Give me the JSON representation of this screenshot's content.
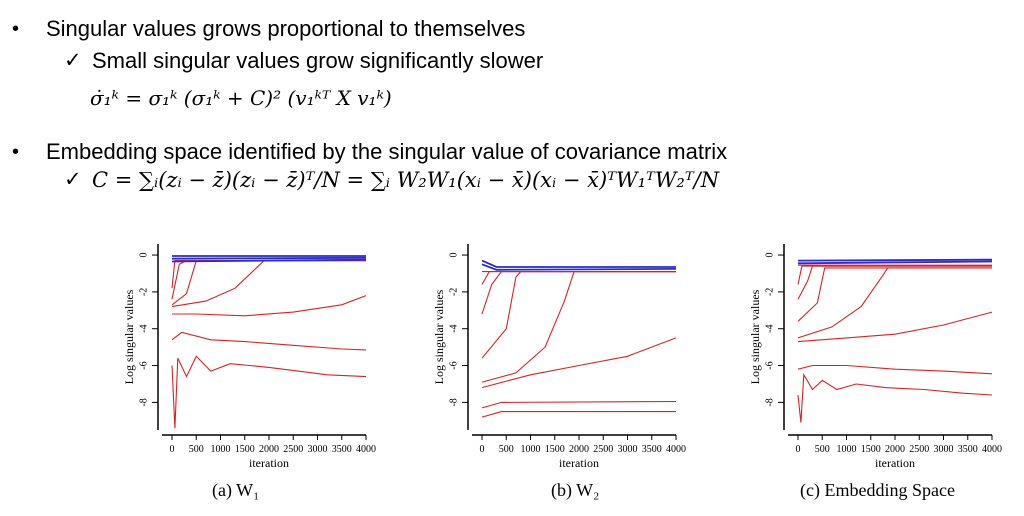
{
  "bullets": [
    {
      "text": "Singular values grows proportional to themselves",
      "sub": "Small singular values grow significantly slower",
      "equation": "σ̇₁ᵏ = σ₁ᵏ (σ₁ᵏ + C)² (v₁ᵏᵀ X v₁ᵏ)"
    },
    {
      "text": "Embedding space identified by the singular value of covariance matrix",
      "equation": "C = ∑ᵢ(zᵢ − z̄)(zᵢ − z̄)ᵀ/N = ∑ᵢ W₂W₁(xᵢ − x̄)(xᵢ − x̄)ᵀW₁ᵀW₂ᵀ/N"
    }
  ],
  "symbols": {
    "bullet": "•",
    "check": "✓"
  },
  "chart_data": [
    {
      "type": "line",
      "caption": "(a) W₁",
      "xlabel": "iteration",
      "ylabel": "Log singular values",
      "xlim": [
        0,
        4000
      ],
      "ylim": [
        -9.5,
        0.6
      ],
      "xticks": [
        0,
        500,
        1000,
        1500,
        2000,
        2500,
        3000,
        3500,
        4000
      ],
      "yticks": [
        0,
        -2,
        -4,
        -6,
        -8
      ],
      "colors": {
        "converged": "#2a2ad6",
        "growing": "#e02020"
      },
      "series": [
        {
          "group": "converged",
          "points": [
            [
              0,
              -0.05
            ],
            [
              4000,
              -0.05
            ]
          ]
        },
        {
          "group": "converged",
          "points": [
            [
              0,
              -0.2
            ],
            [
              4000,
              -0.15
            ]
          ]
        },
        {
          "group": "converged",
          "points": [
            [
              0,
              -0.35
            ],
            [
              4000,
              -0.25
            ]
          ]
        },
        {
          "group": "growing",
          "points": [
            [
              0,
              -1.8
            ],
            [
              60,
              -0.3
            ],
            [
              4000,
              -0.3
            ]
          ]
        },
        {
          "group": "growing",
          "points": [
            [
              0,
              -2.4
            ],
            [
              150,
              -0.5
            ],
            [
              300,
              -0.3
            ],
            [
              4000,
              -0.3
            ]
          ]
        },
        {
          "group": "growing",
          "points": [
            [
              0,
              -2.7
            ],
            [
              300,
              -2.1
            ],
            [
              500,
              -0.3
            ],
            [
              4000,
              -0.3
            ]
          ]
        },
        {
          "group": "growing",
          "points": [
            [
              0,
              -2.8
            ],
            [
              700,
              -2.5
            ],
            [
              1300,
              -1.8
            ],
            [
              1700,
              -0.8
            ],
            [
              1900,
              -0.3
            ],
            [
              4000,
              -0.3
            ]
          ]
        },
        {
          "group": "growing",
          "points": [
            [
              0,
              -3.2
            ],
            [
              500,
              -3.2
            ],
            [
              1500,
              -3.3
            ],
            [
              2500,
              -3.1
            ],
            [
              3500,
              -2.7
            ],
            [
              4000,
              -2.2
            ]
          ]
        },
        {
          "group": "growing",
          "points": [
            [
              0,
              -4.6
            ],
            [
              200,
              -4.2
            ],
            [
              800,
              -4.6
            ],
            [
              1500,
              -4.7
            ],
            [
              2500,
              -4.9
            ],
            [
              3500,
              -5.1
            ],
            [
              4000,
              -5.15
            ]
          ]
        },
        {
          "group": "growing",
          "points": [
            [
              0,
              -6.0
            ],
            [
              60,
              -9.4
            ],
            [
              120,
              -5.6
            ],
            [
              300,
              -6.6
            ],
            [
              500,
              -5.5
            ],
            [
              800,
              -6.3
            ],
            [
              1200,
              -5.9
            ],
            [
              1600,
              -6.0
            ],
            [
              2000,
              -6.1
            ],
            [
              2600,
              -6.3
            ],
            [
              3200,
              -6.5
            ],
            [
              4000,
              -6.6
            ]
          ]
        }
      ]
    },
    {
      "type": "line",
      "caption": "(b) W₂",
      "xlabel": "iteration",
      "ylabel": "Log singular values",
      "xlim": [
        0,
        4000
      ],
      "ylim": [
        -9.5,
        0.6
      ],
      "xticks": [
        0,
        500,
        1000,
        1500,
        2000,
        2500,
        3000,
        3500,
        4000
      ],
      "yticks": [
        0,
        -2,
        -4,
        -6,
        -8
      ],
      "colors": {
        "converged": "#2a2ad6",
        "growing": "#e02020"
      },
      "series": [
        {
          "group": "converged",
          "points": [
            [
              0,
              -0.3
            ],
            [
              300,
              -0.65
            ],
            [
              4000,
              -0.65
            ]
          ]
        },
        {
          "group": "converged",
          "points": [
            [
              0,
              -0.5
            ],
            [
              300,
              -0.8
            ],
            [
              4000,
              -0.75
            ]
          ]
        },
        {
          "group": "growing",
          "points": [
            [
              0,
              -0.9
            ],
            [
              4000,
              -0.9
            ]
          ]
        },
        {
          "group": "growing",
          "points": [
            [
              0,
              -1.6
            ],
            [
              150,
              -0.9
            ],
            [
              4000,
              -0.9
            ]
          ]
        },
        {
          "group": "growing",
          "points": [
            [
              0,
              -3.2
            ],
            [
              200,
              -1.6
            ],
            [
              400,
              -0.9
            ],
            [
              4000,
              -0.9
            ]
          ]
        },
        {
          "group": "growing",
          "points": [
            [
              0,
              -5.6
            ],
            [
              500,
              -4.0
            ],
            [
              700,
              -1.2
            ],
            [
              800,
              -0.9
            ],
            [
              4000,
              -0.9
            ]
          ]
        },
        {
          "group": "growing",
          "points": [
            [
              0,
              -6.9
            ],
            [
              700,
              -6.4
            ],
            [
              1300,
              -5.0
            ],
            [
              1700,
              -2.5
            ],
            [
              1900,
              -0.9
            ],
            [
              4000,
              -0.9
            ]
          ]
        },
        {
          "group": "growing",
          "points": [
            [
              0,
              -7.2
            ],
            [
              1000,
              -6.5
            ],
            [
              2000,
              -6.0
            ],
            [
              3000,
              -5.5
            ],
            [
              4000,
              -4.5
            ]
          ]
        },
        {
          "group": "growing",
          "points": [
            [
              0,
              -8.3
            ],
            [
              400,
              -8.0
            ],
            [
              4000,
              -7.95
            ]
          ]
        },
        {
          "group": "growing",
          "points": [
            [
              0,
              -8.8
            ],
            [
              400,
              -8.5
            ],
            [
              4000,
              -8.5
            ]
          ]
        }
      ]
    },
    {
      "type": "line",
      "caption": "(c) Embedding Space",
      "xlabel": "iteration",
      "ylabel": "Log singular values",
      "xlim": [
        0,
        4000
      ],
      "ylim": [
        -9.5,
        0.6
      ],
      "xticks": [
        0,
        500,
        1000,
        1500,
        2000,
        2500,
        3000,
        3500,
        4000
      ],
      "yticks": [
        0,
        -2,
        -4,
        -6,
        -8
      ],
      "colors": {
        "converged": "#2a2ad6",
        "growing": "#e02020"
      },
      "series": [
        {
          "group": "converged",
          "points": [
            [
              0,
              -0.3
            ],
            [
              4000,
              -0.25
            ]
          ]
        },
        {
          "group": "converged",
          "points": [
            [
              0,
              -0.45
            ],
            [
              4000,
              -0.35
            ]
          ]
        },
        {
          "group": "growing",
          "points": [
            [
              0,
              -0.55
            ],
            [
              4000,
              -0.55
            ]
          ]
        },
        {
          "group": "growing",
          "points": [
            [
              0,
              -1.6
            ],
            [
              80,
              -0.6
            ],
            [
              4000,
              -0.6
            ]
          ]
        },
        {
          "group": "growing",
          "points": [
            [
              0,
              -2.4
            ],
            [
              200,
              -1.4
            ],
            [
              300,
              -0.6
            ],
            [
              4000,
              -0.6
            ]
          ]
        },
        {
          "group": "growing",
          "points": [
            [
              0,
              -3.6
            ],
            [
              400,
              -2.6
            ],
            [
              550,
              -0.7
            ],
            [
              4000,
              -0.7
            ]
          ]
        },
        {
          "group": "growing",
          "points": [
            [
              0,
              -4.5
            ],
            [
              700,
              -3.9
            ],
            [
              1300,
              -2.8
            ],
            [
              1700,
              -1.3
            ],
            [
              1850,
              -0.7
            ],
            [
              4000,
              -0.7
            ]
          ]
        },
        {
          "group": "growing",
          "points": [
            [
              0,
              -4.7
            ],
            [
              1000,
              -4.5
            ],
            [
              2000,
              -4.3
            ],
            [
              3000,
              -3.8
            ],
            [
              4000,
              -3.1
            ]
          ]
        },
        {
          "group": "growing",
          "points": [
            [
              0,
              -6.2
            ],
            [
              300,
              -6.0
            ],
            [
              1000,
              -6.0
            ],
            [
              2000,
              -6.2
            ],
            [
              3000,
              -6.3
            ],
            [
              4000,
              -6.45
            ]
          ]
        },
        {
          "group": "growing",
          "points": [
            [
              0,
              -7.6
            ],
            [
              60,
              -9.1
            ],
            [
              120,
              -6.5
            ],
            [
              300,
              -7.3
            ],
            [
              500,
              -6.8
            ],
            [
              800,
              -7.3
            ],
            [
              1200,
              -7.0
            ],
            [
              1800,
              -7.2
            ],
            [
              2600,
              -7.3
            ],
            [
              3400,
              -7.5
            ],
            [
              4000,
              -7.6
            ]
          ]
        }
      ]
    }
  ]
}
